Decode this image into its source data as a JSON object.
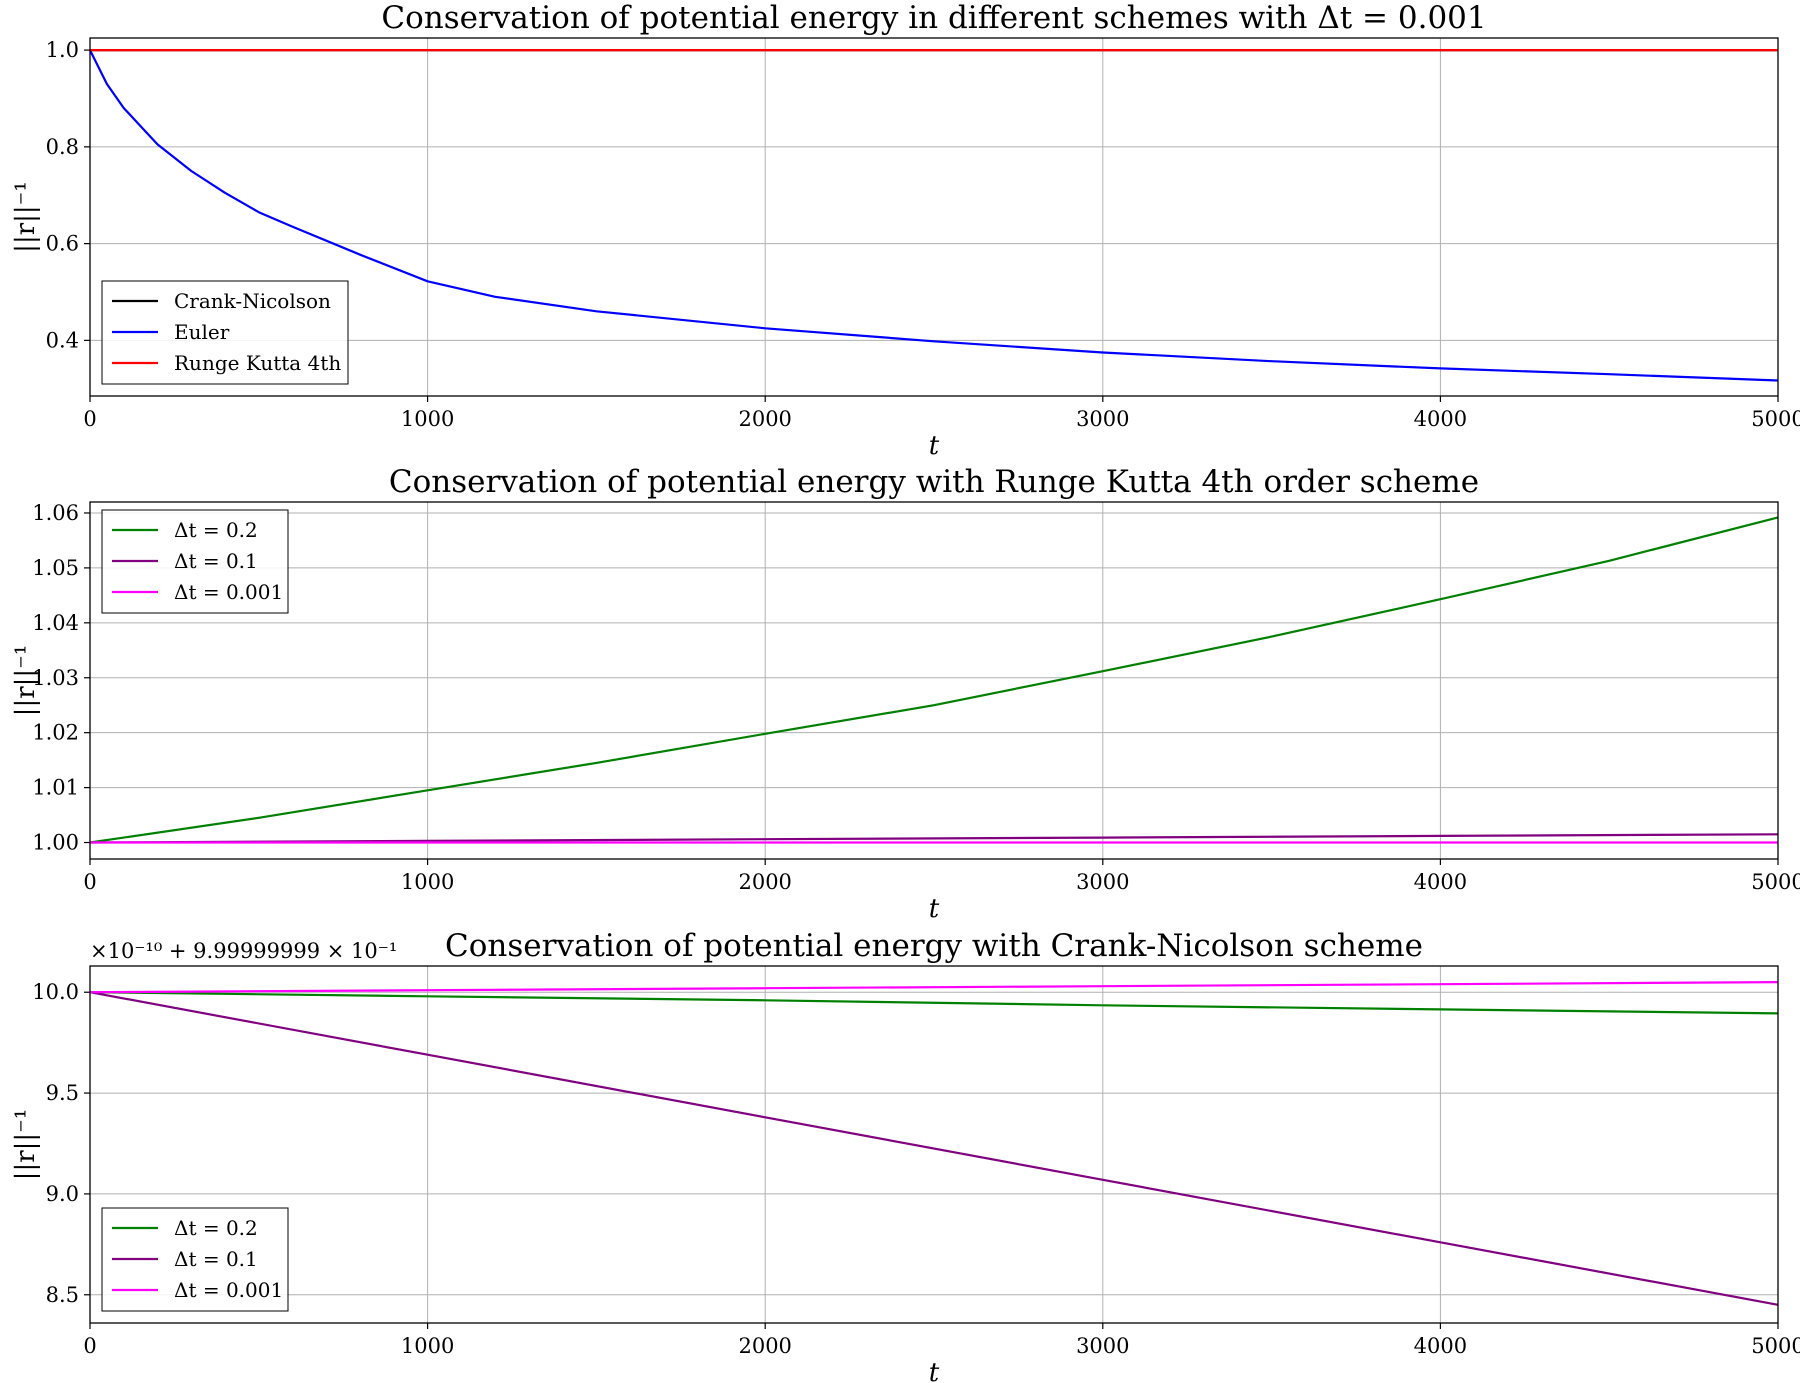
{
  "chart_data": [
    {
      "type": "line",
      "title": "Conservation of potential energy in different schemes with Δt = 0.001",
      "xlabel": "t",
      "ylabel": "||r||⁻¹",
      "xlim": [
        0,
        5000
      ],
      "ylim": [
        0.285,
        1.025
      ],
      "xticks": [
        0,
        1000,
        2000,
        3000,
        4000,
        5000
      ],
      "yticks": [
        0.4,
        0.6,
        0.8,
        1.0
      ],
      "ytick_labels": [
        "0.4",
        "0.6",
        "0.8",
        "1.0"
      ],
      "grid": true,
      "legend_position": "lower-left",
      "series": [
        {
          "name": "Crank-Nicolson",
          "color": "#000000",
          "x": [
            0,
            5000
          ],
          "y": [
            1.0,
            1.0
          ]
        },
        {
          "name": "Euler",
          "color": "#0000ff",
          "x": [
            0,
            50,
            100,
            200,
            300,
            400,
            500,
            600,
            800,
            1000,
            1200,
            1500,
            2000,
            2500,
            3000,
            3500,
            4000,
            4500,
            5000
          ],
          "y": [
            1.0,
            0.93,
            0.88,
            0.805,
            0.75,
            0.705,
            0.665,
            0.635,
            0.577,
            0.522,
            0.49,
            0.46,
            0.425,
            0.398,
            0.375,
            0.357,
            0.342,
            0.33,
            0.317
          ]
        },
        {
          "name": "Runge Kutta 4th",
          "color": "#ff0000",
          "x": [
            0,
            5000
          ],
          "y": [
            1.0,
            1.0
          ]
        }
      ]
    },
    {
      "type": "line",
      "title": "Conservation of potential energy with Runge Kutta 4th order scheme",
      "xlabel": "t",
      "ylabel": "||r||⁻¹",
      "xlim": [
        0,
        5000
      ],
      "ylim": [
        0.997,
        1.062
      ],
      "xticks": [
        0,
        1000,
        2000,
        3000,
        4000,
        5000
      ],
      "yticks": [
        1.0,
        1.01,
        1.02,
        1.03,
        1.04,
        1.05,
        1.06
      ],
      "ytick_labels": [
        "1.00",
        "1.01",
        "1.02",
        "1.03",
        "1.04",
        "1.05",
        "1.06"
      ],
      "grid": true,
      "legend_position": "top-left",
      "series": [
        {
          "name": "Δt = 0.2",
          "color": "#008000",
          "x": [
            0,
            500,
            1000,
            1500,
            2000,
            2500,
            3000,
            3500,
            4000,
            4500,
            5000
          ],
          "y": [
            1.0,
            1.0045,
            1.0095,
            1.0145,
            1.0198,
            1.025,
            1.0312,
            1.0375,
            1.0443,
            1.0513,
            1.0592
          ]
        },
        {
          "name": "Δt = 0.1",
          "color": "#800080",
          "x": [
            0,
            1000,
            2000,
            3000,
            4000,
            5000
          ],
          "y": [
            1.0,
            1.0003,
            1.0006,
            1.0009,
            1.0012,
            1.0015
          ]
        },
        {
          "name": "Δt = 0.001",
          "color": "#ff00ff",
          "x": [
            0,
            5000
          ],
          "y": [
            1.0,
            1.0
          ]
        }
      ]
    },
    {
      "type": "line",
      "title": "Conservation of potential energy with Crank-Nicolson scheme",
      "xlabel": "t",
      "ylabel": "||r||⁻¹",
      "offset_text": "×10⁻¹⁰ + 9.99999999 × 10⁻¹",
      "xlim": [
        0,
        5000
      ],
      "ylim": [
        8.36,
        10.13
      ],
      "xticks": [
        0,
        1000,
        2000,
        3000,
        4000,
        5000
      ],
      "yticks": [
        8.5,
        9.0,
        9.5,
        10.0
      ],
      "ytick_labels": [
        "8.5",
        "9.0",
        "9.5",
        "10.0"
      ],
      "grid": true,
      "legend_position": "lower-left",
      "series": [
        {
          "name": "Δt = 0.2",
          "color": "#008000",
          "x": [
            0,
            1000,
            2000,
            3000,
            4000,
            5000
          ],
          "y": [
            10.0,
            9.98,
            9.96,
            9.935,
            9.915,
            9.895
          ]
        },
        {
          "name": "Δt = 0.1",
          "color": "#800080",
          "x": [
            0,
            1000,
            2000,
            3000,
            4000,
            5000
          ],
          "y": [
            10.0,
            9.69,
            9.38,
            9.07,
            8.76,
            8.45
          ]
        },
        {
          "name": "Δt = 0.001",
          "color": "#ff00ff",
          "x": [
            0,
            1000,
            2000,
            3000,
            4000,
            5000
          ],
          "y": [
            10.0,
            10.01,
            10.02,
            10.03,
            10.04,
            10.05
          ]
        }
      ]
    }
  ]
}
